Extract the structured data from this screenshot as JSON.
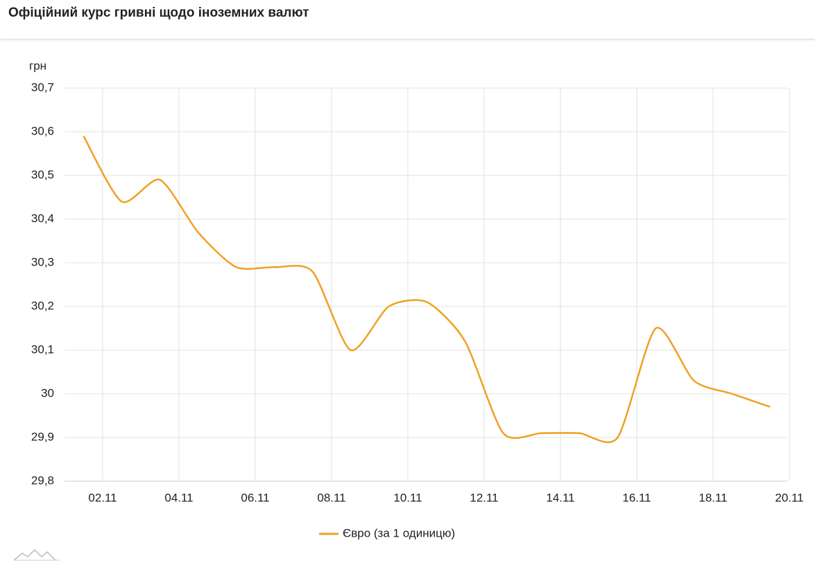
{
  "chart_data": {
    "type": "line",
    "title": "Офіційний курс гривні щодо іноземних валют",
    "y_label": "грн",
    "x": [
      1.5,
      2.5,
      3.5,
      4.5,
      5.5,
      6.5,
      7.5,
      8.5,
      9.5,
      10.5,
      11.5,
      12.5,
      13.5,
      14.5,
      15.5,
      16.5,
      17.5,
      18.5,
      19.5
    ],
    "series": [
      {
        "name": "Євро (за 1 одиницю)",
        "color": "#f0a020",
        "values": [
          30.59,
          30.44,
          30.49,
          30.37,
          30.29,
          30.29,
          30.28,
          30.1,
          30.2,
          30.21,
          30.12,
          29.91,
          29.91,
          29.91,
          29.9,
          30.15,
          30.03,
          30.0,
          29.97
        ]
      }
    ],
    "xlim": [
      1,
      20
    ],
    "xticks": [
      {
        "value": 2,
        "label": "02.11"
      },
      {
        "value": 4,
        "label": "04.11"
      },
      {
        "value": 6,
        "label": "06.11"
      },
      {
        "value": 8,
        "label": "08.11"
      },
      {
        "value": 10,
        "label": "10.11"
      },
      {
        "value": 12,
        "label": "12.11"
      },
      {
        "value": 14,
        "label": "14.11"
      },
      {
        "value": 16,
        "label": "16.11"
      },
      {
        "value": 18,
        "label": "18.11"
      },
      {
        "value": 20,
        "label": "20.11"
      }
    ],
    "ylim": [
      29.8,
      30.7
    ],
    "yticks": [
      {
        "value": 29.8,
        "label": "29,8"
      },
      {
        "value": 29.9,
        "label": "29,9"
      },
      30,
      {
        "value": 30.1,
        "label": "30,1"
      },
      {
        "value": 30.2,
        "label": "30,2"
      },
      {
        "value": 30.3,
        "label": "30,3"
      },
      {
        "value": 30.4,
        "label": "30,4"
      },
      {
        "value": 30.5,
        "label": "30,5"
      },
      {
        "value": 30.6,
        "label": "30,6"
      },
      {
        "value": 30.7,
        "label": "30,7"
      }
    ],
    "grid": true
  }
}
